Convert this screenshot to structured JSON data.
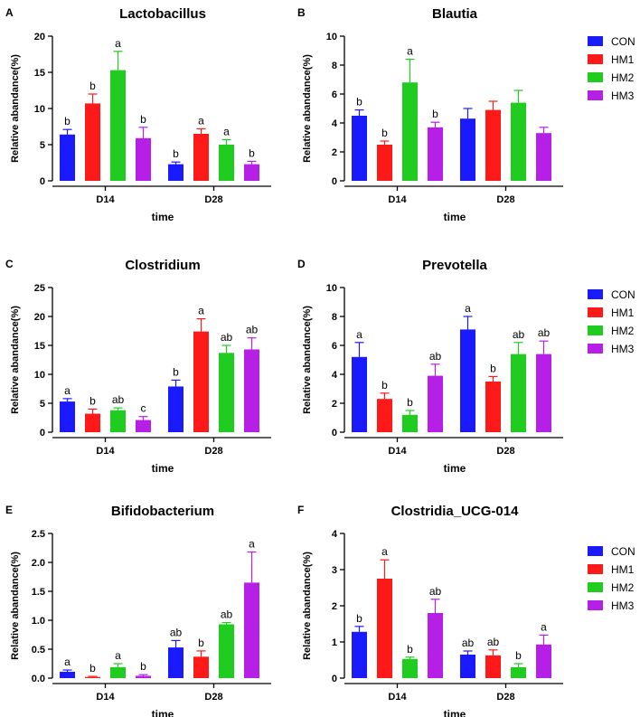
{
  "colors": {
    "CON": "#1a1aff",
    "HM1": "#ff1a1a",
    "HM2": "#1fcc1f",
    "HM3": "#b51fe6"
  },
  "legend": [
    "CON",
    "HM1",
    "HM2",
    "HM3"
  ],
  "chart_data": [
    {
      "type": "bar",
      "panel_label": "A",
      "title": "Lactobacillus",
      "xlabel": "time",
      "ylabel": "Relative abandance(%)",
      "categories": [
        "D14",
        "D28"
      ],
      "ylim": [
        0,
        20
      ],
      "yticks": [
        "0",
        "5",
        "10",
        "15",
        "20"
      ],
      "ytick_values": [
        0,
        5,
        10,
        15,
        20
      ],
      "series": [
        {
          "name": "CON",
          "values": [
            6.4,
            2.3
          ],
          "errors": [
            0.7,
            0.3
          ],
          "letters": [
            "b",
            "b"
          ]
        },
        {
          "name": "HM1",
          "values": [
            10.7,
            6.5
          ],
          "errors": [
            1.3,
            0.7
          ],
          "letters": [
            "b",
            "a"
          ]
        },
        {
          "name": "HM2",
          "values": [
            15.3,
            5.0
          ],
          "errors": [
            2.6,
            0.7
          ],
          "letters": [
            "a",
            "a"
          ]
        },
        {
          "name": "HM3",
          "values": [
            5.9,
            2.3
          ],
          "errors": [
            1.5,
            0.4
          ],
          "letters": [
            "b",
            "b"
          ]
        }
      ]
    },
    {
      "type": "bar",
      "panel_label": "B",
      "title": "Blautia",
      "xlabel": "time",
      "ylabel": "Relative abandance(%)",
      "categories": [
        "D14",
        "D28"
      ],
      "ylim": [
        0,
        10
      ],
      "yticks": [
        "0",
        "2",
        "4",
        "6",
        "8",
        "10"
      ],
      "ytick_values": [
        0,
        2,
        4,
        6,
        8,
        10
      ],
      "series": [
        {
          "name": "CON",
          "values": [
            4.5,
            4.3
          ],
          "errors": [
            0.4,
            0.7
          ],
          "letters": [
            "b",
            ""
          ]
        },
        {
          "name": "HM1",
          "values": [
            2.5,
            4.9
          ],
          "errors": [
            0.25,
            0.6
          ],
          "letters": [
            "b",
            ""
          ]
        },
        {
          "name": "HM2",
          "values": [
            6.8,
            5.4
          ],
          "errors": [
            1.6,
            0.85
          ],
          "letters": [
            "a",
            ""
          ]
        },
        {
          "name": "HM3",
          "values": [
            3.7,
            3.3
          ],
          "errors": [
            0.35,
            0.4
          ],
          "letters": [
            "b",
            ""
          ]
        }
      ]
    },
    {
      "type": "bar",
      "panel_label": "C",
      "title": "Clostridium",
      "xlabel": "time",
      "ylabel": "Relative abandance(%)",
      "categories": [
        "D14",
        "D28"
      ],
      "ylim": [
        0,
        25
      ],
      "yticks": [
        "0",
        "5",
        "10",
        "15",
        "20",
        "25"
      ],
      "ytick_values": [
        0,
        5,
        10,
        15,
        20,
        25
      ],
      "series": [
        {
          "name": "CON",
          "values": [
            5.3,
            7.9
          ],
          "errors": [
            0.5,
            1.1
          ],
          "letters": [
            "a",
            "b"
          ]
        },
        {
          "name": "HM1",
          "values": [
            3.2,
            17.4
          ],
          "errors": [
            0.8,
            2.2
          ],
          "letters": [
            "b",
            "a"
          ]
        },
        {
          "name": "HM2",
          "values": [
            3.8,
            13.7
          ],
          "errors": [
            0.4,
            1.3
          ],
          "letters": [
            "ab",
            "ab"
          ]
        },
        {
          "name": "HM3",
          "values": [
            2.1,
            14.3
          ],
          "errors": [
            0.6,
            2.0
          ],
          "letters": [
            "c",
            "ab"
          ]
        }
      ]
    },
    {
      "type": "bar",
      "panel_label": "D",
      "title": "Prevotella",
      "xlabel": "time",
      "ylabel": "Relative abandance(%)",
      "categories": [
        "D14",
        "D28"
      ],
      "ylim": [
        0,
        10
      ],
      "yticks": [
        "0",
        "2",
        "4",
        "6",
        "8",
        "10"
      ],
      "ytick_values": [
        0,
        2,
        4,
        6,
        8,
        10
      ],
      "series": [
        {
          "name": "CON",
          "values": [
            5.2,
            7.1
          ],
          "errors": [
            1.0,
            0.9
          ],
          "letters": [
            "a",
            "a"
          ]
        },
        {
          "name": "HM1",
          "values": [
            2.3,
            3.5
          ],
          "errors": [
            0.4,
            0.35
          ],
          "letters": [
            "b",
            "b"
          ]
        },
        {
          "name": "HM2",
          "values": [
            1.2,
            5.4
          ],
          "errors": [
            0.3,
            0.8
          ],
          "letters": [
            "b",
            "ab"
          ]
        },
        {
          "name": "HM3",
          "values": [
            3.9,
            5.4
          ],
          "errors": [
            0.8,
            0.9
          ],
          "letters": [
            "ab",
            "ab"
          ]
        }
      ]
    },
    {
      "type": "bar",
      "panel_label": "E",
      "title": "Bifidobacterium",
      "xlabel": "time",
      "ylabel": "Relative abandance(%)",
      "categories": [
        "D14",
        "D28"
      ],
      "ylim": [
        0,
        2.5
      ],
      "yticks": [
        "0.0",
        "0.5",
        "1.0",
        "1.5",
        "2.0",
        "2.5"
      ],
      "ytick_values": [
        0,
        0.5,
        1.0,
        1.5,
        2.0,
        2.5
      ],
      "series": [
        {
          "name": "CON",
          "values": [
            0.11,
            0.53
          ],
          "errors": [
            0.03,
            0.12
          ],
          "letters": [
            "a",
            "ab"
          ]
        },
        {
          "name": "HM1",
          "values": [
            0.02,
            0.37
          ],
          "errors": [
            0.01,
            0.1
          ],
          "letters": [
            "b",
            "b"
          ]
        },
        {
          "name": "HM2",
          "values": [
            0.19,
            0.93
          ],
          "errors": [
            0.06,
            0.03
          ],
          "letters": [
            "a",
            "ab"
          ]
        },
        {
          "name": "HM3",
          "values": [
            0.04,
            1.65
          ],
          "errors": [
            0.02,
            0.53
          ],
          "letters": [
            "b",
            "a"
          ]
        }
      ]
    },
    {
      "type": "bar",
      "panel_label": "F",
      "title": "Clostridia_UCG-014",
      "xlabel": "time",
      "ylabel": "Relative abandance(%)",
      "categories": [
        "D14",
        "D28"
      ],
      "ylim": [
        0,
        4
      ],
      "yticks": [
        "0",
        "1",
        "2",
        "3",
        "4"
      ],
      "ytick_values": [
        0,
        1,
        2,
        3,
        4
      ],
      "series": [
        {
          "name": "CON",
          "values": [
            1.28,
            0.65
          ],
          "errors": [
            0.15,
            0.1
          ],
          "letters": [
            "b",
            "ab"
          ]
        },
        {
          "name": "HM1",
          "values": [
            2.75,
            0.63
          ],
          "errors": [
            0.52,
            0.15
          ],
          "letters": [
            "a",
            "ab"
          ]
        },
        {
          "name": "HM2",
          "values": [
            0.53,
            0.3
          ],
          "errors": [
            0.05,
            0.1
          ],
          "letters": [
            "b",
            "b"
          ]
        },
        {
          "name": "HM3",
          "values": [
            1.8,
            0.93
          ],
          "errors": [
            0.38,
            0.26
          ],
          "letters": [
            "ab",
            "a"
          ]
        }
      ]
    }
  ]
}
